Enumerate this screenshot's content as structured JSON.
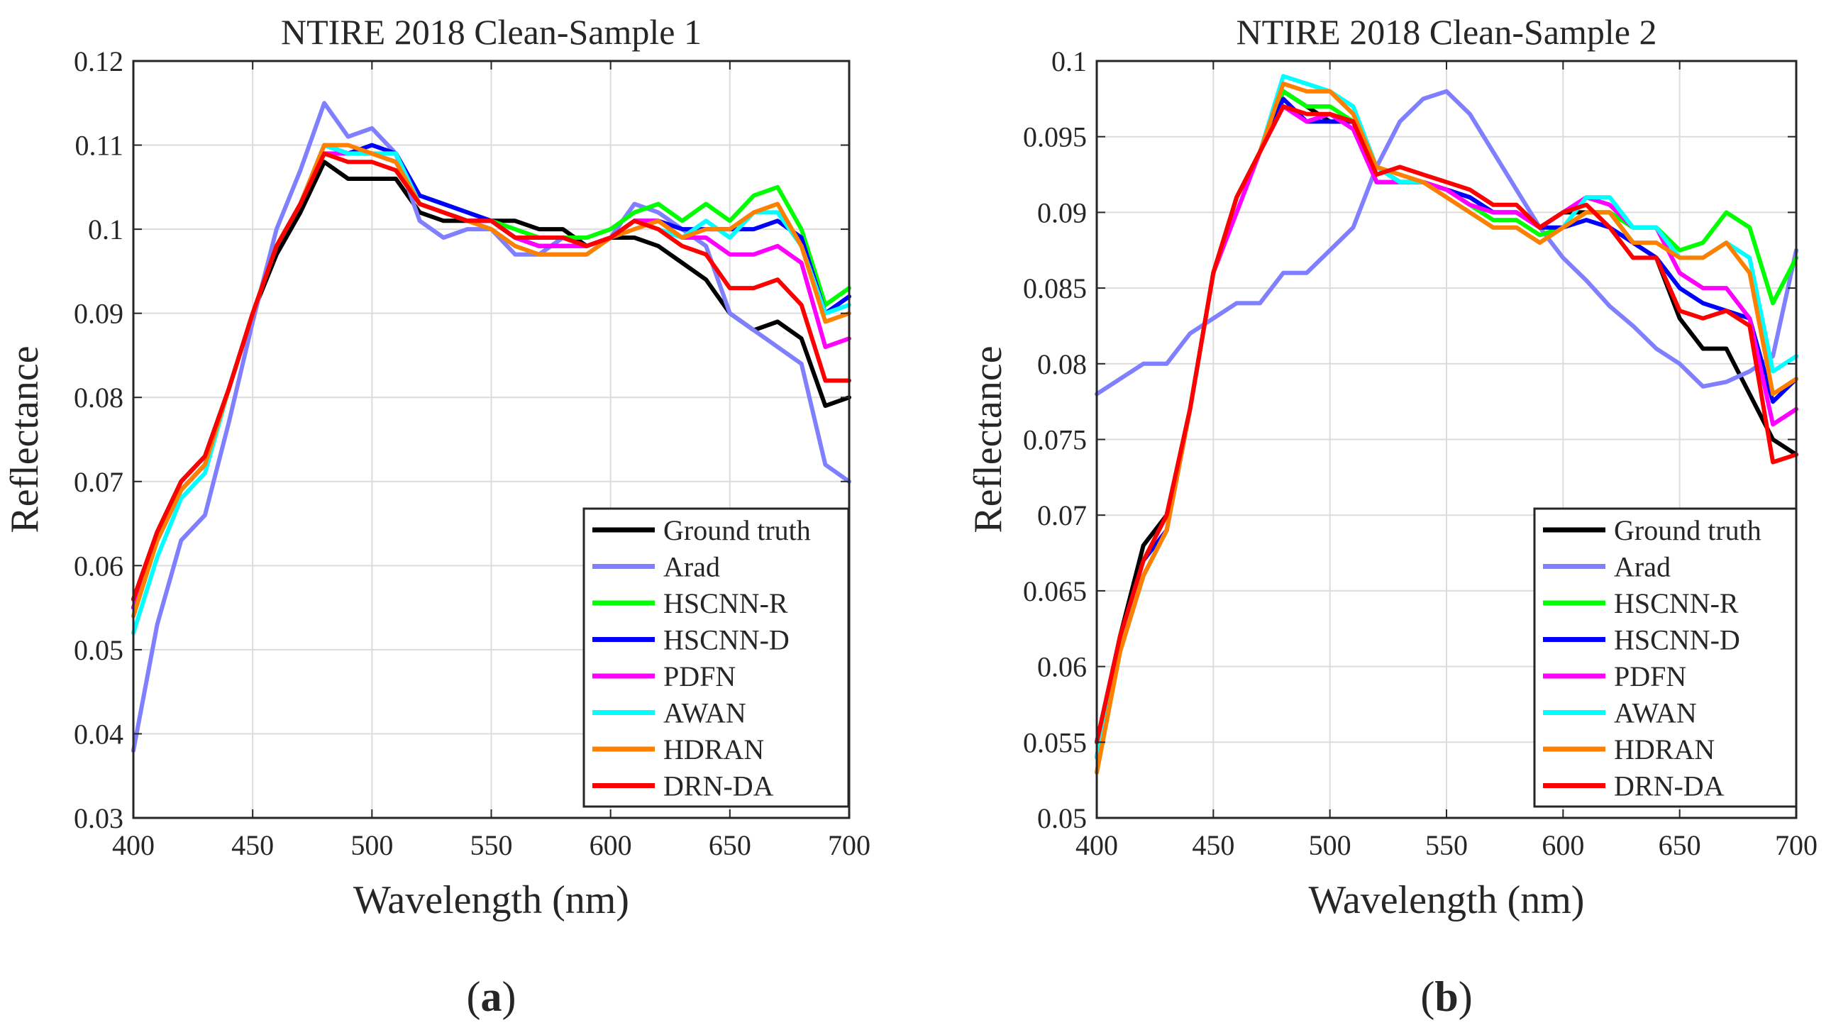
{
  "chart_data": [
    {
      "type": "line",
      "panel_label": "a",
      "title": "NTIRE 2018 Clean-Sample 1",
      "xlabel": "Wavelength (nm)",
      "ylabel": "Reflectance",
      "xlim": [
        400,
        700
      ],
      "ylim": [
        0.03,
        0.12
      ],
      "xticks": [
        400,
        450,
        500,
        550,
        600,
        650,
        700
      ],
      "xtick_labels": [
        "400",
        "450",
        "500",
        "550",
        "600",
        "650",
        "700"
      ],
      "yticks": [
        0.03,
        0.04,
        0.05,
        0.06,
        0.07,
        0.08,
        0.09,
        0.1,
        0.11,
        0.12
      ],
      "ytick_labels": [
        "0.03",
        "0.04",
        "0.05",
        "0.06",
        "0.07",
        "0.08",
        "0.09",
        "0.1",
        "0.11",
        "0.12"
      ],
      "grid": true,
      "legend_position": "bottom-right",
      "x": [
        400,
        410,
        420,
        430,
        440,
        450,
        460,
        470,
        480,
        490,
        500,
        510,
        520,
        530,
        540,
        550,
        560,
        570,
        580,
        590,
        600,
        610,
        620,
        630,
        640,
        650,
        660,
        670,
        680,
        690,
        700
      ],
      "series": [
        {
          "name": "Ground truth",
          "color": "#000000",
          "values": [
            0.056,
            0.064,
            0.07,
            0.073,
            0.081,
            0.09,
            0.097,
            0.102,
            0.108,
            0.106,
            0.106,
            0.106,
            0.102,
            0.101,
            0.101,
            0.101,
            0.101,
            0.1,
            0.1,
            0.098,
            0.099,
            0.099,
            0.098,
            0.096,
            0.094,
            0.09,
            0.088,
            0.089,
            0.087,
            0.079,
            0.08
          ]
        },
        {
          "name": "Arad",
          "color": "#7f7fff",
          "values": [
            0.038,
            0.053,
            0.063,
            0.066,
            0.077,
            0.089,
            0.1,
            0.107,
            0.115,
            0.111,
            0.112,
            0.109,
            0.101,
            0.099,
            0.1,
            0.1,
            0.097,
            0.097,
            0.099,
            0.098,
            0.099,
            0.103,
            0.102,
            0.1,
            0.098,
            0.09,
            0.088,
            0.086,
            0.084,
            0.072,
            0.07
          ]
        },
        {
          "name": "HSCNN-R",
          "color": "#00ff00",
          "values": [
            0.054,
            0.063,
            0.069,
            0.072,
            0.081,
            0.09,
            0.098,
            0.103,
            0.11,
            0.109,
            0.109,
            0.108,
            0.104,
            0.103,
            0.102,
            0.101,
            0.1,
            0.099,
            0.099,
            0.099,
            0.1,
            0.102,
            0.103,
            0.101,
            0.103,
            0.101,
            0.104,
            0.105,
            0.1,
            0.091,
            0.093
          ]
        },
        {
          "name": "HSCNN-D",
          "color": "#0000ff",
          "values": [
            0.055,
            0.063,
            0.069,
            0.072,
            0.081,
            0.09,
            0.098,
            0.103,
            0.11,
            0.109,
            0.11,
            0.109,
            0.104,
            0.103,
            0.102,
            0.101,
            0.099,
            0.098,
            0.098,
            0.098,
            0.099,
            0.101,
            0.101,
            0.1,
            0.1,
            0.1,
            0.1,
            0.101,
            0.099,
            0.09,
            0.092
          ]
        },
        {
          "name": "PDFN",
          "color": "#ff00ff",
          "values": [
            0.055,
            0.063,
            0.069,
            0.072,
            0.081,
            0.09,
            0.098,
            0.103,
            0.109,
            0.109,
            0.109,
            0.108,
            0.103,
            0.102,
            0.101,
            0.101,
            0.099,
            0.098,
            0.098,
            0.098,
            0.099,
            0.101,
            0.101,
            0.099,
            0.099,
            0.097,
            0.097,
            0.098,
            0.096,
            0.086,
            0.087
          ]
        },
        {
          "name": "AWAN",
          "color": "#00ffff",
          "values": [
            0.052,
            0.061,
            0.068,
            0.071,
            0.081,
            0.09,
            0.098,
            0.103,
            0.11,
            0.109,
            0.109,
            0.109,
            0.103,
            0.102,
            0.101,
            0.1,
            0.098,
            0.097,
            0.097,
            0.097,
            0.099,
            0.101,
            0.1,
            0.099,
            0.101,
            0.099,
            0.102,
            0.102,
            0.098,
            0.09,
            0.091
          ]
        },
        {
          "name": "HDRAN",
          "color": "#ff8000",
          "values": [
            0.054,
            0.063,
            0.069,
            0.072,
            0.081,
            0.09,
            0.098,
            0.103,
            0.11,
            0.11,
            0.109,
            0.108,
            0.103,
            0.102,
            0.101,
            0.1,
            0.098,
            0.097,
            0.097,
            0.097,
            0.099,
            0.1,
            0.101,
            0.099,
            0.1,
            0.1,
            0.102,
            0.103,
            0.098,
            0.089,
            0.09
          ]
        },
        {
          "name": "DRN-DA",
          "color": "#ff0000",
          "values": [
            0.056,
            0.064,
            0.07,
            0.073,
            0.081,
            0.09,
            0.098,
            0.103,
            0.109,
            0.108,
            0.108,
            0.107,
            0.103,
            0.102,
            0.101,
            0.101,
            0.099,
            0.099,
            0.099,
            0.098,
            0.099,
            0.101,
            0.1,
            0.098,
            0.097,
            0.093,
            0.093,
            0.094,
            0.091,
            0.082,
            0.082
          ]
        }
      ]
    },
    {
      "type": "line",
      "panel_label": "b",
      "title": "NTIRE 2018 Clean-Sample 2",
      "xlabel": "Wavelength (nm)",
      "ylabel": "Reflectance",
      "xlim": [
        400,
        700
      ],
      "ylim": [
        0.05,
        0.1
      ],
      "xticks": [
        400,
        450,
        500,
        550,
        600,
        650,
        700
      ],
      "xtick_labels": [
        "400",
        "450",
        "500",
        "550",
        "600",
        "650",
        "700"
      ],
      "yticks": [
        0.05,
        0.055,
        0.06,
        0.065,
        0.07,
        0.075,
        0.08,
        0.085,
        0.09,
        0.095,
        0.1
      ],
      "ytick_labels": [
        "0.05",
        "0.055",
        "0.06",
        "0.065",
        "0.07",
        "0.075",
        "0.08",
        "0.085",
        "0.09",
        "0.095",
        "0.1"
      ],
      "grid": true,
      "legend_position": "bottom-right",
      "x": [
        400,
        410,
        420,
        430,
        440,
        450,
        460,
        470,
        480,
        490,
        500,
        510,
        520,
        530,
        540,
        550,
        560,
        570,
        580,
        590,
        600,
        610,
        620,
        630,
        640,
        650,
        660,
        670,
        680,
        690,
        700
      ],
      "series": [
        {
          "name": "Ground truth",
          "color": "#000000",
          "values": [
            0.054,
            0.062,
            0.068,
            0.07,
            0.077,
            0.086,
            0.091,
            0.094,
            0.098,
            0.097,
            0.096,
            0.096,
            0.093,
            0.092,
            0.092,
            0.0915,
            0.091,
            0.09,
            0.09,
            0.089,
            0.09,
            0.09,
            0.09,
            0.088,
            0.087,
            0.083,
            0.081,
            0.081,
            0.078,
            0.075,
            0.074
          ]
        },
        {
          "name": "Arad",
          "color": "#7f7fff",
          "values": [
            0.078,
            0.079,
            0.08,
            0.08,
            0.082,
            0.083,
            0.084,
            0.084,
            0.086,
            0.086,
            0.0875,
            0.089,
            0.093,
            0.096,
            0.0975,
            0.098,
            0.0965,
            0.094,
            0.0915,
            0.089,
            0.087,
            0.0855,
            0.0838,
            0.0825,
            0.081,
            0.08,
            0.0785,
            0.0788,
            0.0795,
            0.0805,
            0.0875
          ]
        },
        {
          "name": "HSCNN-R",
          "color": "#00ff00",
          "values": [
            0.053,
            0.061,
            0.066,
            0.069,
            0.077,
            0.086,
            0.091,
            0.094,
            0.098,
            0.097,
            0.097,
            0.096,
            0.093,
            0.092,
            0.092,
            0.0915,
            0.0905,
            0.0895,
            0.0895,
            0.0885,
            0.089,
            0.09,
            0.09,
            0.089,
            0.089,
            0.0875,
            0.088,
            0.09,
            0.089,
            0.084,
            0.087
          ]
        },
        {
          "name": "HSCNN-D",
          "color": "#0000ff",
          "values": [
            0.055,
            0.062,
            0.067,
            0.069,
            0.077,
            0.086,
            0.091,
            0.094,
            0.0975,
            0.096,
            0.096,
            0.096,
            0.092,
            0.092,
            0.092,
            0.0915,
            0.091,
            0.09,
            0.09,
            0.089,
            0.089,
            0.0895,
            0.089,
            0.088,
            0.087,
            0.085,
            0.084,
            0.0835,
            0.083,
            0.0775,
            0.079
          ]
        },
        {
          "name": "PDFN",
          "color": "#ff00ff",
          "values": [
            0.054,
            0.061,
            0.066,
            0.069,
            0.077,
            0.086,
            0.09,
            0.094,
            0.097,
            0.096,
            0.0965,
            0.0955,
            0.092,
            0.092,
            0.092,
            0.0915,
            0.0905,
            0.09,
            0.09,
            0.089,
            0.09,
            0.091,
            0.0905,
            0.089,
            0.089,
            0.086,
            0.085,
            0.085,
            0.083,
            0.076,
            0.077
          ]
        },
        {
          "name": "AWAN",
          "color": "#00ffff",
          "values": [
            0.054,
            0.061,
            0.066,
            0.069,
            0.077,
            0.086,
            0.091,
            0.094,
            0.099,
            0.0985,
            0.098,
            0.097,
            0.093,
            0.092,
            0.092,
            0.091,
            0.09,
            0.089,
            0.089,
            0.088,
            0.089,
            0.091,
            0.091,
            0.089,
            0.089,
            0.087,
            0.087,
            0.088,
            0.087,
            0.0795,
            0.0805
          ]
        },
        {
          "name": "HDRAN",
          "color": "#ff8000",
          "values": [
            0.053,
            0.061,
            0.066,
            0.069,
            0.077,
            0.086,
            0.091,
            0.094,
            0.0985,
            0.098,
            0.098,
            0.0965,
            0.093,
            0.0925,
            0.092,
            0.091,
            0.09,
            0.089,
            0.089,
            0.088,
            0.089,
            0.09,
            0.09,
            0.088,
            0.088,
            0.087,
            0.087,
            0.088,
            0.086,
            0.078,
            0.079
          ]
        },
        {
          "name": "DRN-DA",
          "color": "#ff0000",
          "values": [
            0.055,
            0.062,
            0.067,
            0.07,
            0.077,
            0.086,
            0.091,
            0.094,
            0.097,
            0.0965,
            0.0965,
            0.096,
            0.0925,
            0.093,
            0.0925,
            0.092,
            0.0915,
            0.0905,
            0.0905,
            0.089,
            0.09,
            0.0905,
            0.089,
            0.087,
            0.087,
            0.0835,
            0.083,
            0.0835,
            0.0825,
            0.0735,
            0.074
          ]
        }
      ]
    }
  ]
}
